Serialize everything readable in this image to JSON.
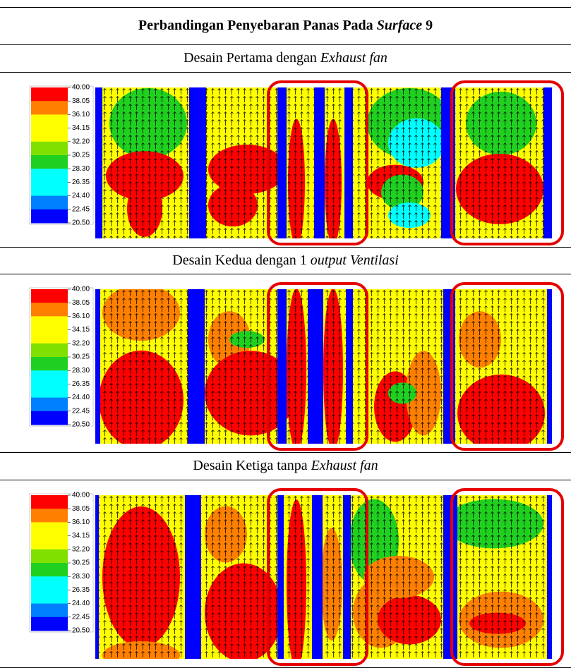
{
  "header": {
    "title": "Perbandingan Penyebaran Panas Pada",
    "title_italic": "Surface",
    "title_suffix": "9"
  },
  "legend": {
    "labels": [
      "40.00",
      "38.05",
      "36.10",
      "34.15",
      "32.20",
      "30.25",
      "28.30",
      "26.35",
      "24.40",
      "22.45",
      "20.50"
    ],
    "colors": [
      "#ff0000",
      "#ff8000",
      "#ffff00",
      "#ffff00",
      "#80e000",
      "#20d020",
      "#00ffff",
      "#00ffff",
      "#0080ff",
      "#0000ff"
    ]
  },
  "panels": [
    {
      "caption": "Desain Pertama dengan",
      "caption_italic": "Exhaust fan"
    },
    {
      "caption": "Desain Kedua dengan 1",
      "caption_italic": "output Ventilasi"
    },
    {
      "caption": "Desain Ketiga tanpa",
      "caption_italic": "Exhaust fan"
    }
  ]
}
